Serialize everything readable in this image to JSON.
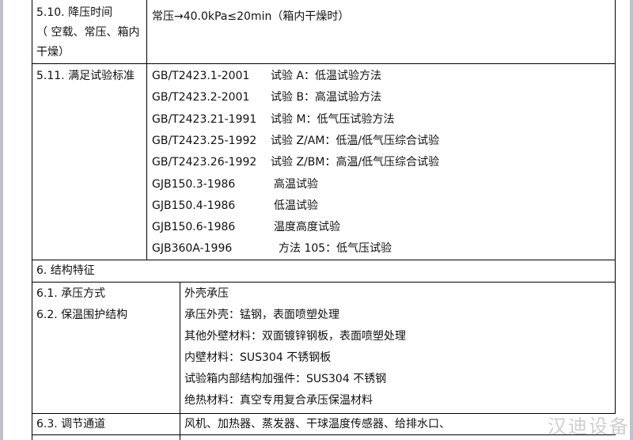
{
  "rows": {
    "r510": {
      "label_lines": [
        "5.10. 降压时间",
        "（ 空载、常压、箱内",
        "干燥）"
      ],
      "value": "常压→40.0kPa≤20min（箱内干燥时）"
    },
    "r511": {
      "label": "5.11. 满足试验标准",
      "standards": [
        {
          "code": "GB/T2423.1-2001",
          "desc": "试验 A：低温试验方法"
        },
        {
          "code": "GB/T2423.2-2001",
          "desc": "试验 B：高温试验方法"
        },
        {
          "code": "GB/T2423.21-1991",
          "desc": "试验 M：低气压试验方法"
        },
        {
          "code": "GB/T2423.25-1992",
          "desc": "试验 Z/AM：低温/低气压综合试验"
        },
        {
          "code": "GB/T2423.26-1992",
          "desc": "试验 Z/BM：高温/低气压综合试验"
        },
        {
          "code": "GJB150.3-1986",
          "desc": "高温试验"
        },
        {
          "code": "GJB150.4-1986",
          "desc": "低温试验"
        },
        {
          "code": "GJB150.6-1986",
          "desc": "温度高度试验"
        },
        {
          "code": "GJB360A-1996",
          "desc": "方法 105：低气压试验"
        }
      ]
    },
    "s6": {
      "label": "6.   结构特征"
    },
    "r61": {
      "label": "6.1.  承压方式",
      "value": "外壳承压"
    },
    "r62": {
      "label": "6.2.  保温围护结构",
      "values": [
        "承压外壳：锰钢，表面喷塑处理",
        "其他外壁材料：双面镀锌钢板，表面喷塑处理",
        "内壁材料：SUS304 不锈钢板",
        "试验箱内部结构加强件：SUS304 不锈钢",
        "绝热材料：真空专用复合承压保温材料"
      ]
    },
    "r63": {
      "label": "6.3.  调节通道",
      "value": "风机、加热器、蒸发器、干球温度传感器、给排水口、"
    }
  },
  "watermark": "汉迪设备"
}
